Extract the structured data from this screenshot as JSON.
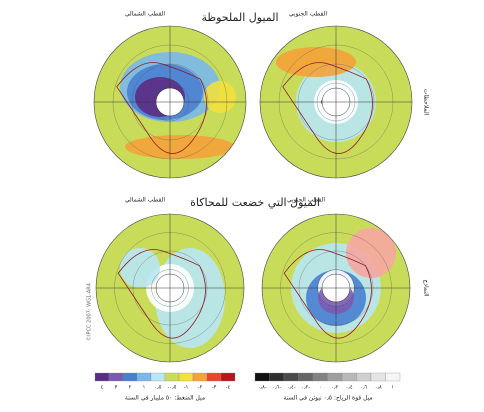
{
  "header": {
    "observed_title": "الميول الملحوظة",
    "simulated_title": "الميول التي خضعت للمحاكاة"
  },
  "maps": [
    {
      "label": "القطب الشمالي"
    },
    {
      "label": "القطب الجنوبي"
    },
    {
      "label": "القطب الشمالي"
    },
    {
      "label": "القطب الجنوبي"
    }
  ],
  "row_labels": [
    "الملاحظات",
    "النماذج"
  ],
  "credit": "©IPCC 2007: WG1-AR4",
  "pressure_scale": {
    "caption": "ميل الضغط: ٥٠ مليبار في السنة",
    "colors": [
      "#5b2c83",
      "#7a5ab0",
      "#4a7fd0",
      "#7ab8ea",
      "#b8e6f4",
      "#c9dc5a",
      "#f2e03c",
      "#f4a23a",
      "#e8452c",
      "#b8141c"
    ],
    "labels": [
      "٤",
      "٣",
      "٢",
      "١",
      "٠٫٥",
      "-٠٫٥",
      "-١",
      "-٢",
      "-٣",
      "-٤"
    ]
  },
  "wind_scale": {
    "caption": "ميل قوة الرياح: ٠٫٥ نيوتن في السنة",
    "colors": [
      "#111111",
      "#2e2e2e",
      "#4a4a4a",
      "#666666",
      "#828282",
      "#9e9e9e",
      "#b8b8b8",
      "#cfcfcf",
      "#e4e4e4",
      "#f6f6f6"
    ],
    "labels": [
      "٠٫٨-",
      "٠٫٦-",
      "٠٫٤-",
      "٠٫٢-",
      "٠",
      "٠٫٢",
      "٠٫٤",
      "٠٫٦",
      "٠٫٨",
      "١"
    ]
  }
}
